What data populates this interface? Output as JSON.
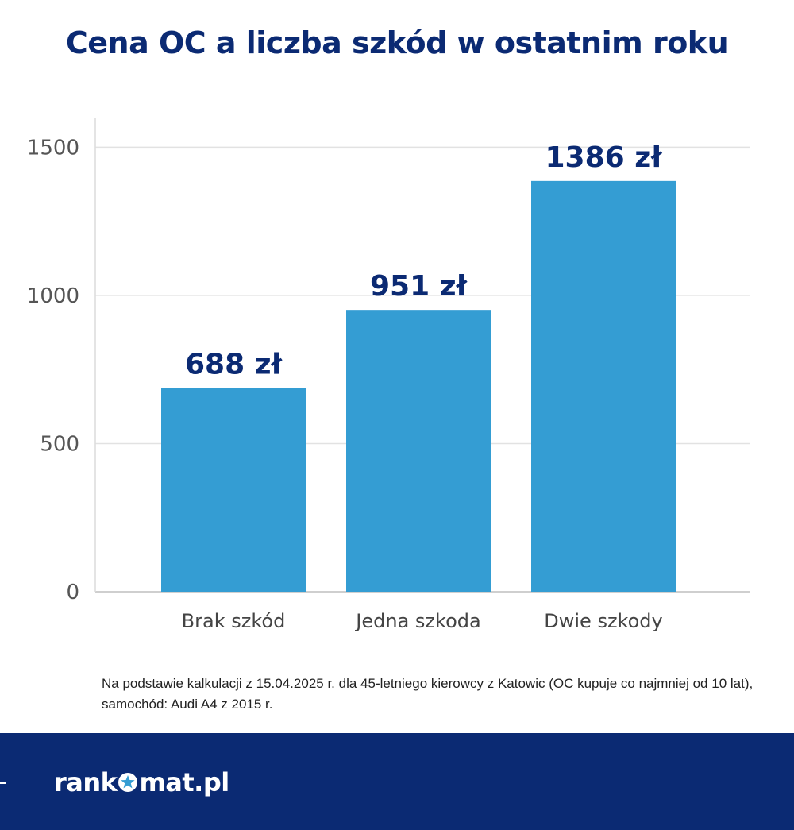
{
  "title": "Cena OC a liczba szkód w ostatnim roku",
  "note": "Na podstawie kalkulacji z 15.04.2025 r. dla 45-letniego kierowcy z Katowic (OC kupuje co najmniej od 10 lat), samochód: Audi A4 z 2015 r.",
  "logo": {
    "text": "rankomat.pl",
    "pre": "rank",
    "post": "mat.pl"
  },
  "colors": {
    "bar": "#349dd3",
    "title": "#0b2a73",
    "footer": "#0b2a73"
  },
  "chart_data": {
    "type": "bar",
    "title": "Cena OC a liczba szkód w ostatnim roku",
    "xlabel": "",
    "ylabel": "",
    "categories": [
      "Brak szkód",
      "Jedna szkoda",
      "Dwie szkody"
    ],
    "values": [
      688,
      951,
      1386
    ],
    "data_labels": [
      "688 zł",
      "951 zł",
      "1386 zł"
    ],
    "ylim": [
      0,
      1600
    ],
    "yticks": [
      0,
      500,
      1000,
      1500
    ],
    "grid": true,
    "legend": "none"
  }
}
